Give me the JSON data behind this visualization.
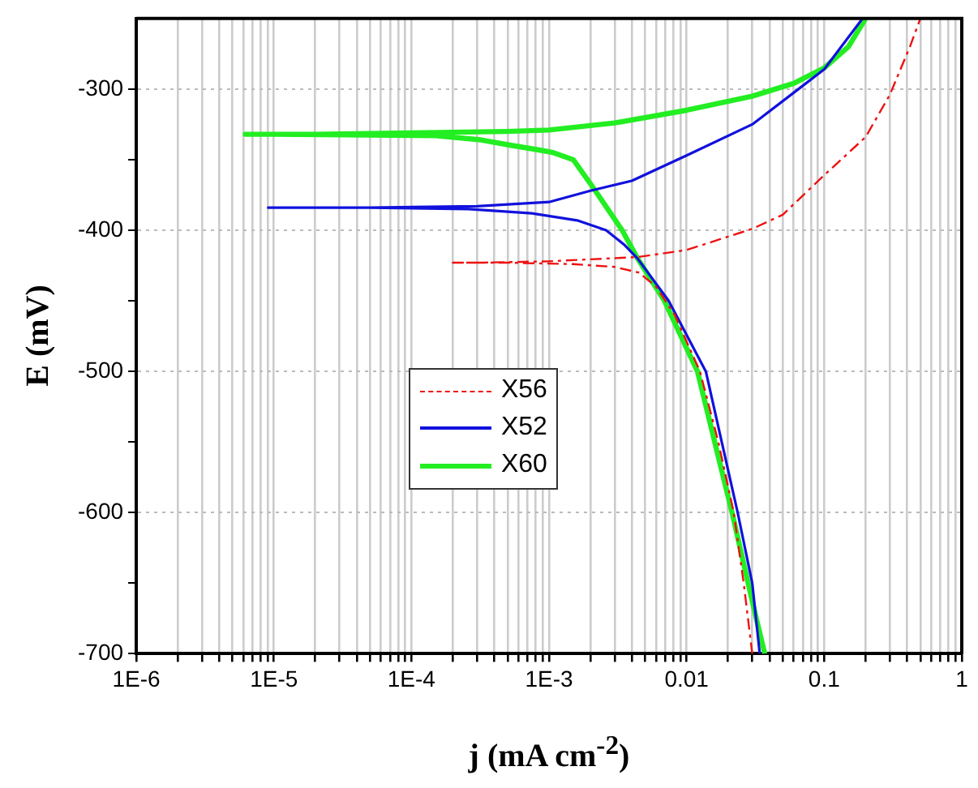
{
  "chart_data": {
    "type": "line",
    "xlabel": "j (mA cm$^{-2}$)",
    "ylabel": "E (mV)",
    "log": "x",
    "grid": true,
    "legend": "center",
    "marker": "none",
    "xlim": [
      1e-06,
      1
    ],
    "ylim": [
      -700,
      -250
    ],
    "xticks": [
      {
        "value": 1e-06,
        "label": "1E-6"
      },
      {
        "value": 2e-06,
        "label": null
      },
      {
        "value": 3e-06,
        "label": null
      },
      {
        "value": 4e-06,
        "label": null
      },
      {
        "value": 5e-06,
        "label": null
      },
      {
        "value": 6e-06,
        "label": null
      },
      {
        "value": 7e-06,
        "label": null
      },
      {
        "value": 8e-06,
        "label": null
      },
      {
        "value": 9e-06,
        "label": null
      },
      {
        "value": 1e-05,
        "label": "1E-5"
      },
      {
        "value": 2e-05,
        "label": null
      },
      {
        "value": 3e-05,
        "label": null
      },
      {
        "value": 4e-05,
        "label": null
      },
      {
        "value": 5e-05,
        "label": null
      },
      {
        "value": 6e-05,
        "label": null
      },
      {
        "value": 7e-05,
        "label": null
      },
      {
        "value": 8e-05,
        "label": null
      },
      {
        "value": 9e-05,
        "label": null
      },
      {
        "value": 0.0001,
        "label": "1E-4"
      },
      {
        "value": 0.0002,
        "label": null
      },
      {
        "value": 0.0003,
        "label": null
      },
      {
        "value": 0.0004,
        "label": null
      },
      {
        "value": 0.0005,
        "label": null
      },
      {
        "value": 0.0006,
        "label": null
      },
      {
        "value": 0.0007,
        "label": null
      },
      {
        "value": 0.0008,
        "label": null
      },
      {
        "value": 0.0009,
        "label": null
      },
      {
        "value": 0.001,
        "label": "1E-3"
      },
      {
        "value": 0.002,
        "label": null
      },
      {
        "value": 0.003,
        "label": null
      },
      {
        "value": 0.004,
        "label": null
      },
      {
        "value": 0.005,
        "label": null
      },
      {
        "value": 0.006,
        "label": null
      },
      {
        "value": 0.007,
        "label": null
      },
      {
        "value": 0.008,
        "label": null
      },
      {
        "value": 0.009,
        "label": null
      },
      0.01,
      {
        "value": 0.02,
        "label": null
      },
      {
        "value": 0.03,
        "label": null
      },
      {
        "value": 0.04,
        "label": null
      },
      {
        "value": 0.05,
        "label": null
      },
      {
        "value": 0.06,
        "label": null
      },
      {
        "value": 0.07,
        "label": null
      },
      {
        "value": 0.08,
        "label": null
      },
      {
        "value": 0.09,
        "label": null
      },
      0.1,
      {
        "value": 0.2,
        "label": null
      },
      {
        "value": 0.3,
        "label": null
      },
      {
        "value": 0.4,
        "label": null
      },
      {
        "value": 0.5,
        "label": null
      },
      {
        "value": 0.6,
        "label": null
      },
      {
        "value": 0.7,
        "label": null
      },
      {
        "value": 0.8,
        "label": null
      },
      {
        "value": 0.9,
        "label": null
      },
      1
    ],
    "yticks": [
      -700,
      {
        "value": -650,
        "label": null
      },
      -600,
      {
        "value": -550,
        "label": null
      },
      -500,
      {
        "value": -450,
        "label": null
      },
      -400,
      {
        "value": -350,
        "label": null
      },
      -300
    ],
    "series": [
      {
        "name": "X56",
        "type": "line",
        "color": "#ee1111",
        "line_style": "dashed",
        "x": [
          0.03,
          0.026,
          0.022,
          0.017,
          0.0125,
          0.0082,
          0.006,
          0.0045,
          0.003,
          0.0015,
          0.0005,
          0.0002,
          0.0003,
          0.001,
          0.0044,
          0.01,
          0.03,
          0.05,
          0.1,
          0.2,
          0.3,
          0.42,
          0.5
        ],
        "values": [
          -700,
          -650,
          -600,
          -550,
          -500,
          -460,
          -440,
          -430,
          -426,
          -424,
          -423,
          -423,
          -423,
          -422,
          -419,
          -414,
          -399,
          -389,
          -361,
          -334,
          -304,
          -270,
          -250
        ]
      },
      {
        "name": "X52",
        "type": "line",
        "color": "#1111dd",
        "line_style": "solid",
        "x": [
          0.034,
          0.03,
          0.0235,
          0.018,
          0.0138,
          0.0074,
          0.0044,
          0.0035,
          0.0026,
          0.0016,
          0.00075,
          0.00026,
          5e-05,
          9.1e-06,
          5e-05,
          0.0003,
          0.001,
          0.002,
          0.004,
          0.01,
          0.03,
          0.065,
          0.1,
          0.19
        ],
        "values": [
          -700,
          -650,
          -600,
          -550,
          -500,
          -450,
          -420,
          -410,
          -400,
          -393,
          -388,
          -385,
          -384,
          -384,
          -384,
          -383,
          -380,
          -372,
          -365,
          -347,
          -325,
          -300,
          -286,
          -250
        ]
      },
      {
        "name": "X60",
        "type": "line",
        "color": "#22ee22",
        "line_style": "solid",
        "x": [
          0.037,
          0.033,
          0.028,
          0.0214,
          0.016,
          0.012,
          0.0069,
          0.0044,
          0.0034,
          0.0021,
          0.0015,
          0.00107,
          0.00083,
          0.00054,
          0.00032,
          0.00015,
          1e-05,
          6.2e-06,
          2e-05,
          0.0001,
          0.0005,
          0.001,
          0.003,
          0.01,
          0.03,
          0.06,
          0.1,
          0.15,
          0.2
        ],
        "values": [
          -700,
          -680,
          -650,
          -600,
          -550,
          -500,
          -450,
          -420,
          -400,
          -370,
          -350,
          -345,
          -343,
          -340,
          -336,
          -333,
          -332,
          -332,
          -332,
          -331,
          -330,
          -329,
          -324,
          -315,
          -305,
          -296,
          -285,
          -270,
          -250
        ]
      }
    ]
  }
}
